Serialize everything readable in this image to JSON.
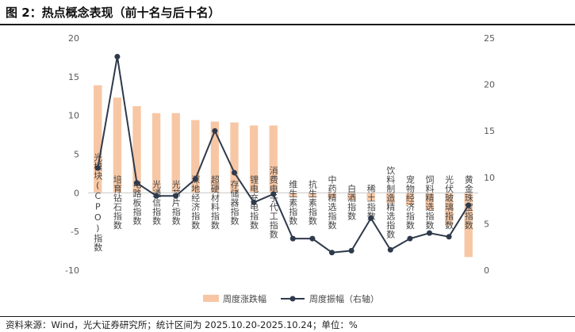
{
  "title": "图 2：热点概念表现（前十名与后十名）",
  "source": "资料来源：Wind，光大证券研究所；统计区间为 2025.10.20-2025.10.24；单位：%",
  "chart_data": {
    "type": "bar",
    "categories": [
      "光模块(CPO)指数",
      "培育钻石指数",
      "电路板指数",
      "光通信指数",
      "光芯片指数",
      "深地经济指数",
      "超硬材料指数",
      "存储器指数",
      "锂电充电指数",
      "消费电子代工指数",
      "维生素指数",
      "抗生素指数",
      "中药精选指数",
      "白酒指数",
      "稀土指数",
      "饮料制造精选指数",
      "宠物经济指数",
      "饲料精选指数",
      "光伏玻璃指数",
      "黄金珠宝指数"
    ],
    "series": [
      {
        "name": "周度涨跌幅",
        "type": "bar",
        "axis": "left",
        "color": "#f7c7a5",
        "values": [
          13.9,
          12.3,
          11.2,
          10.3,
          10.3,
          9.4,
          9.2,
          9.1,
          8.7,
          8.7,
          -0.5,
          -0.6,
          -0.7,
          -0.9,
          -1.0,
          -1.3,
          -1.6,
          -2.2,
          -4.2,
          -8.3
        ]
      },
      {
        "name": "周度振幅（右轴）",
        "type": "line",
        "axis": "right",
        "color": "#2e3a4b",
        "values": [
          11.0,
          23.0,
          9.4,
          8.0,
          8.0,
          9.8,
          15.0,
          10.5,
          7.3,
          8.2,
          3.4,
          3.4,
          1.9,
          2.1,
          5.6,
          2.2,
          3.4,
          4.0,
          3.6,
          7.0
        ]
      }
    ],
    "y_left": {
      "min": -10,
      "max": 20,
      "ticks": [
        -10,
        -5,
        0,
        5,
        10,
        15,
        20
      ]
    },
    "y_right": {
      "min": 0,
      "max": 25,
      "ticks": [
        0,
        5,
        10,
        15,
        20,
        25
      ]
    },
    "legend": {
      "position": "bottom",
      "entries": [
        "周度涨跌幅",
        "周度振幅（右轴）"
      ]
    },
    "grid": false
  }
}
